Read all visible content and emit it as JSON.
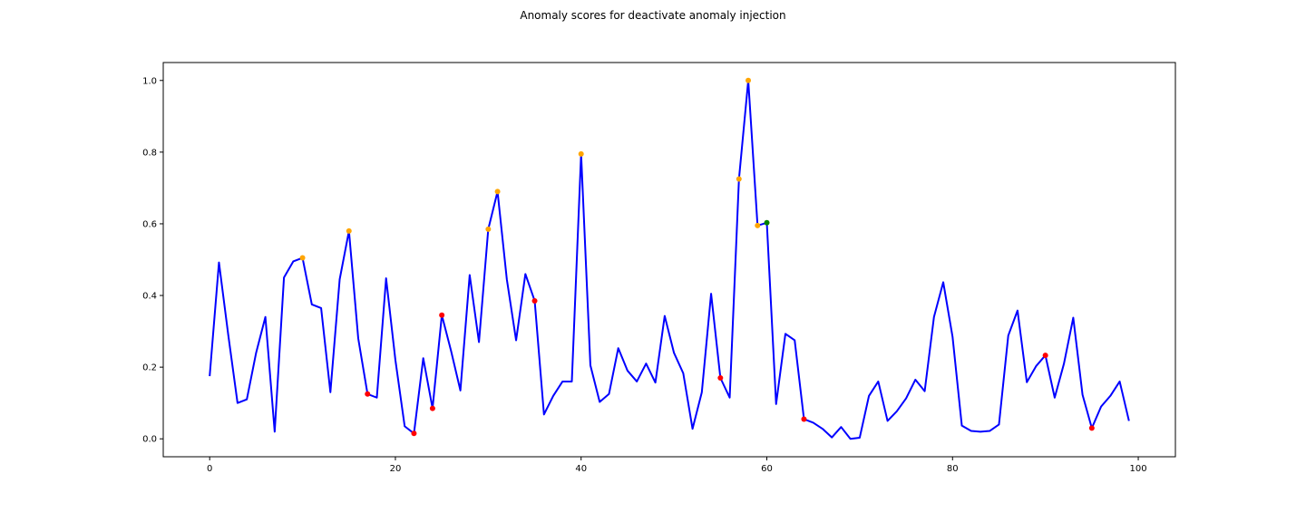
{
  "chart_data": {
    "type": "line",
    "title": "Anomaly scores for deactivate anomaly injection",
    "xlabel": "",
    "ylabel": "",
    "xlim": [
      -5,
      104
    ],
    "ylim": [
      -0.05,
      1.05
    ],
    "xticks": [
      0,
      20,
      40,
      60,
      80,
      100
    ],
    "yticks": [
      0.0,
      0.2,
      0.4,
      0.6,
      0.8,
      1.0
    ],
    "grid": false,
    "legend": "none",
    "series": [
      {
        "color": "#0000ff",
        "x": [
          0,
          1,
          2,
          3,
          4,
          5,
          6,
          7,
          8,
          9,
          10,
          11,
          12,
          13,
          14,
          15,
          16,
          17,
          18,
          19,
          20,
          21,
          22,
          23,
          24,
          25,
          26,
          27,
          28,
          29,
          30,
          31,
          32,
          33,
          34,
          35,
          36,
          37,
          38,
          39,
          40,
          41,
          42,
          43,
          44,
          45,
          46,
          47,
          48,
          49,
          50,
          51,
          52,
          53,
          54,
          55,
          56,
          57,
          58,
          59,
          60,
          61,
          62,
          63,
          64,
          65,
          66,
          67,
          68,
          69,
          70,
          71,
          72,
          73,
          74,
          75,
          76,
          77,
          78,
          79,
          80,
          81,
          82,
          83,
          84,
          85,
          86,
          87,
          88,
          89,
          90,
          91,
          92,
          93,
          94,
          95,
          96,
          97,
          98,
          99
        ],
        "values": [
          0.175,
          0.492,
          0.29,
          0.1,
          0.11,
          0.24,
          0.34,
          0.02,
          0.45,
          0.495,
          0.505,
          0.375,
          0.365,
          0.13,
          0.445,
          0.58,
          0.28,
          0.125,
          0.115,
          0.448,
          0.22,
          0.035,
          0.015,
          0.225,
          0.085,
          0.345,
          0.245,
          0.135,
          0.457,
          0.27,
          0.585,
          0.69,
          0.445,
          0.275,
          0.46,
          0.385,
          0.068,
          0.12,
          0.16,
          0.16,
          0.795,
          0.205,
          0.103,
          0.125,
          0.253,
          0.19,
          0.16,
          0.21,
          0.157,
          0.343,
          0.24,
          0.183,
          0.028,
          0.13,
          0.405,
          0.17,
          0.115,
          0.725,
          1.0,
          0.595,
          0.603,
          0.097,
          0.293,
          0.275,
          0.055,
          0.045,
          0.028,
          0.004,
          0.033,
          0.0,
          0.003,
          0.12,
          0.16,
          0.05,
          0.077,
          0.113,
          0.165,
          0.133,
          0.34,
          0.437,
          0.285,
          0.037,
          0.022,
          0.02,
          0.022,
          0.04,
          0.288,
          0.358,
          0.158,
          0.203,
          0.233,
          0.115,
          0.21,
          0.338,
          0.123,
          0.03,
          0.09,
          0.12,
          0.16,
          0.05
        ]
      }
    ],
    "marker_groups": [
      {
        "color": "#ffa500",
        "x": [
          10,
          15,
          30,
          31,
          40,
          57,
          58,
          59
        ]
      },
      {
        "color": "#ff0000",
        "x": [
          17,
          22,
          24,
          25,
          35,
          55,
          64,
          90,
          95
        ]
      },
      {
        "color": "#008000",
        "x": [
          60
        ]
      }
    ]
  }
}
